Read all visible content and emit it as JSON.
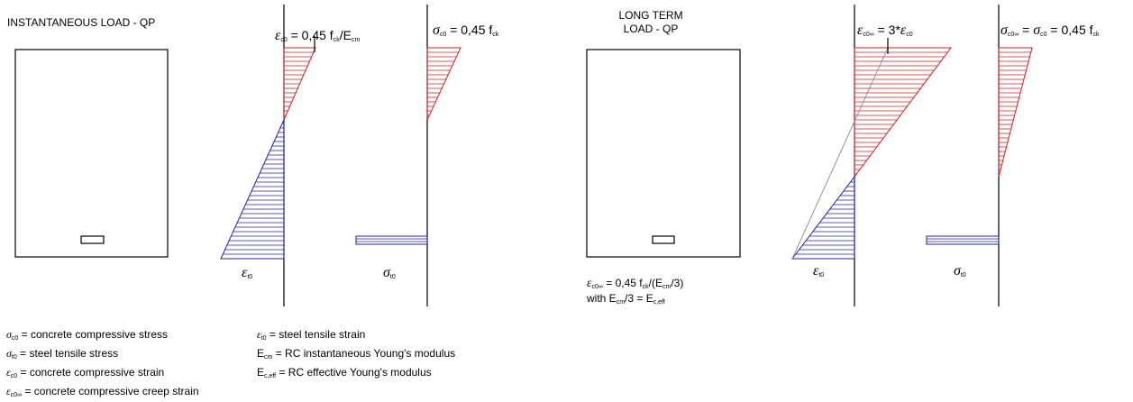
{
  "left_panel": {
    "title": "INSTANTANEOUS LOAD - QP",
    "strain_top": {
      "symbol": "ε",
      "sub": "c0",
      "text": " = 0,45 f",
      "sub2": "ck",
      "text2": "/E",
      "sub3": "cm"
    },
    "stress_top": {
      "symbol": "σ",
      "sub": "c0",
      "text": " = 0,45 f",
      "sub2": "ck"
    },
    "strain_bottom": {
      "symbol": "ε",
      "sub": "t0"
    },
    "stress_bottom": {
      "symbol": "σ",
      "sub": "t0"
    }
  },
  "right_panel": {
    "title_line1": "LONG TERM",
    "title_line2": "LOAD - QP",
    "strain_top": {
      "symbol": "ε",
      "sub": "c0∞",
      "text": " = 3*",
      "symbol2": "ε",
      "sub2": "c0"
    },
    "stress_top": {
      "symbol": "σ",
      "sub": "c0∞",
      "text": " = ",
      "symbol2": "σ",
      "sub2": "c0",
      "text2": " = 0,45 f",
      "sub3": "ck"
    },
    "strain_bottom": {
      "symbol": "ε",
      "sub": "t0"
    },
    "stress_bottom": {
      "symbol": "σ",
      "sub": "t0"
    },
    "note_line1": {
      "symbol": "ε",
      "sub": "c0∞",
      "text": " = 0,45 f",
      "sub2": "ck",
      "text2": "/(E",
      "sub3": "cm",
      "text3": "/3)"
    },
    "note_line2": {
      "text": "with E",
      "sub": "cm",
      "text2": "/3 = E",
      "sub2": "c,eff"
    }
  },
  "legend": {
    "col1": [
      {
        "symbol": "σ",
        "sub": "c0",
        "text": " = concrete compressive stress"
      },
      {
        "symbol": "σ",
        "sub": "t0",
        "text": " = steel tensile stress"
      },
      {
        "symbol": "ε",
        "sub": "c0",
        "text": " = concrete compressive strain"
      },
      {
        "symbol": "ε",
        "sub": "c0∞",
        "text": " = concrete compressive creep strain"
      }
    ],
    "col2": [
      {
        "symbol": "ε",
        "sub": "t0",
        "text": "  = steel tensile strain"
      },
      {
        "symbol": "E",
        "sub": "cm",
        "text": " = RC instantaneous Young's modulus"
      },
      {
        "symbol": "E",
        "sub": "c,eff",
        "text": " = RC effective Young's modulus"
      }
    ]
  },
  "colors": {
    "compression": "#cc2222",
    "tension": "#2222aa",
    "line": "#000000",
    "construction": "#888888"
  }
}
